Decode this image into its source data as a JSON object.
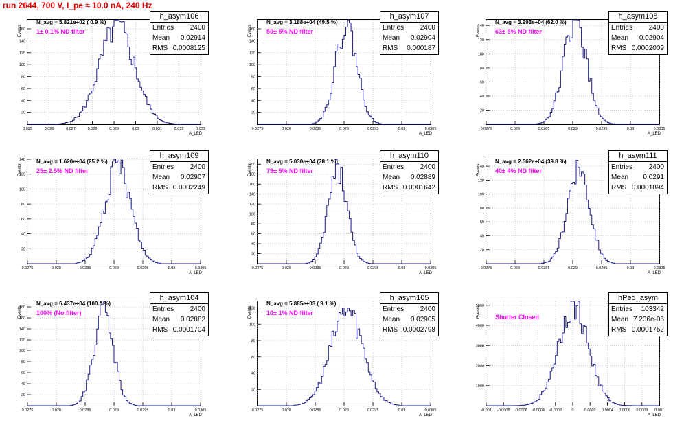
{
  "header": {
    "run_title": "run 2644,   700 V, I_pe ≈ 10.0 nA, 240 Hz"
  },
  "stats_labels": {
    "entries": "Entries",
    "mean": "Mean",
    "rms": "RMS"
  },
  "events_label": "Events",
  "xaxis_label": "A_LED",
  "chart_data": [
    {
      "type": "bar",
      "name": "h_asym106",
      "navg": "N_avg = 5.821e+02 ( 0.9 %)",
      "filter": "1± 0.1% ND filter",
      "entries": "2400",
      "mean": "0.02914",
      "rms": "0.0008125",
      "xlim": [
        0.025,
        0.033
      ],
      "ylim": [
        0,
        175
      ],
      "yticks": [
        20,
        40,
        60,
        80,
        100,
        120,
        140,
        160
      ],
      "xticks": [
        "0.025",
        "0.026",
        "0.027",
        "0.028",
        "0.029",
        "0.03",
        "0.031",
        "0.032",
        "0.033"
      ],
      "mu": 0.02914,
      "sigma": 0.0008125,
      "peak": 163
    },
    {
      "type": "bar",
      "name": "h_asym107",
      "navg": "N_avg = 3.188e+04 (49.5 %)",
      "filter": "50± 5% ND filter",
      "entries": "2400",
      "mean": "0.02904",
      "rms": "0.000187",
      "xlim": [
        0.0275,
        0.0305
      ],
      "ylim": [
        0,
        175
      ],
      "yticks": [
        20,
        40,
        60,
        80,
        100,
        120,
        140,
        160
      ],
      "xticks": [
        "0.0275",
        "0.028",
        "0.0285",
        "0.029",
        "0.0295",
        "0.03",
        "0.0305"
      ],
      "mu": 0.02904,
      "sigma": 0.000187,
      "peak": 165
    },
    {
      "type": "bar",
      "name": "h_asym108",
      "navg": "N_avg = 3.993e+04 (62.0 %)",
      "filter": "63± 5% ND filter",
      "entries": "2400",
      "mean": "0.02904",
      "rms": "0.0002009",
      "xlim": [
        0.0275,
        0.0305
      ],
      "ylim": [
        0,
        148
      ],
      "yticks": [
        20,
        40,
        60,
        80,
        100,
        120,
        140
      ],
      "xticks": [
        "0.0275",
        "0.028",
        "0.0285",
        "0.029",
        "0.0295",
        "0.03",
        "0.0305"
      ],
      "mu": 0.02904,
      "sigma": 0.0002009,
      "peak": 145
    },
    {
      "type": "bar",
      "name": "h_asym109",
      "navg": "N_avg = 1.620e+04 (25.2 %)",
      "filter": "25± 2.5% ND filter",
      "entries": "2400",
      "mean": "0.02907",
      "rms": "0.0002249",
      "xlim": [
        0.0275,
        0.0305
      ],
      "ylim": [
        0,
        140
      ],
      "yticks": [
        20,
        40,
        60,
        80,
        100,
        120,
        140
      ],
      "xticks": [
        "0.0275",
        "0.028",
        "0.0285",
        "0.029",
        "0.0295",
        "0.03",
        "0.0305"
      ],
      "mu": 0.02907,
      "sigma": 0.0002249,
      "peak": 130
    },
    {
      "type": "bar",
      "name": "h_asym110",
      "navg": "N_avg = 5.030e+04 (78.1 %)",
      "filter": "79± 5% ND filter",
      "entries": "2400",
      "mean": "0.02889",
      "rms": "0.0001642",
      "xlim": [
        0.0275,
        0.0305
      ],
      "ylim": [
        0,
        210
      ],
      "yticks": [
        20,
        40,
        60,
        80,
        100,
        120,
        140,
        160,
        180,
        200
      ],
      "xticks": [
        "0.0275",
        "0.028",
        "0.0285",
        "0.029",
        "0.0295",
        "0.03",
        "0.0305"
      ],
      "mu": 0.02889,
      "sigma": 0.0001642,
      "peak": 190
    },
    {
      "type": "bar",
      "name": "h_asym111",
      "navg": "N_avg = 2.562e+04 (39.8 %)",
      "filter": "40± 4% ND filter",
      "entries": "2400",
      "mean": "0.0291",
      "rms": "0.0001894",
      "xlim": [
        0.0275,
        0.0305
      ],
      "ylim": [
        0,
        150
      ],
      "yticks": [
        20,
        40,
        60,
        80,
        100,
        120,
        140
      ],
      "xticks": [
        "0.0275",
        "0.028",
        "0.0285",
        "0.029",
        "0.0295",
        "0.03",
        "0.0305"
      ],
      "mu": 0.0291,
      "sigma": 0.0001894,
      "peak": 140
    },
    {
      "type": "bar",
      "name": "h_asym104",
      "navg": "N_avg = 6.437e+04 (100.0 %)",
      "filter": "100% (No filter)",
      "entries": "2400",
      "mean": "0.02882",
      "rms": "0.0001704",
      "xlim": [
        0.0275,
        0.0305
      ],
      "ylim": [
        0,
        190
      ],
      "yticks": [
        20,
        40,
        60,
        80,
        100,
        120,
        140,
        160,
        180
      ],
      "xticks": [
        "0.0275",
        "0.028",
        "0.0285",
        "0.029",
        "0.0295",
        "0.03",
        "0.0305"
      ],
      "mu": 0.02882,
      "sigma": 0.0001704,
      "peak": 170
    },
    {
      "type": "bar",
      "name": "h_asym105",
      "navg": "N_avg = 5.885e+03 ( 9.1 %)",
      "filter": "10± 1% ND filter",
      "entries": "2400",
      "mean": "0.02905",
      "rms": "0.0002798",
      "xlim": [
        0.0275,
        0.0305
      ],
      "ylim": [
        0,
        128
      ],
      "yticks": [
        20,
        40,
        60,
        80,
        100,
        120
      ],
      "xticks": [
        "0.0275",
        "0.028",
        "0.0285",
        "0.029",
        "0.0295",
        "0.03",
        "0.0305"
      ],
      "mu": 0.02905,
      "sigma": 0.0002798,
      "peak": 118
    },
    {
      "type": "bar",
      "name": "hPed_asym",
      "navg": "",
      "filter": "Shutter Closed",
      "entries": "103342",
      "mean": "7.236e-06",
      "rms": "0.0001752",
      "xlim": [
        -0.001,
        0.001
      ],
      "ylim": [
        0,
        5200
      ],
      "yticks": [
        1000,
        2000,
        3000,
        4000,
        5000
      ],
      "xticks": [
        "-0.001",
        "-0.0008",
        "-0.0006",
        "-0.0004",
        "-0.0002",
        "0",
        "0.0002",
        "0.0004",
        "0.0006",
        "0.0008",
        "0.001"
      ],
      "mu": 7e-06,
      "sigma": 0.0001752,
      "peak": 4950
    }
  ]
}
